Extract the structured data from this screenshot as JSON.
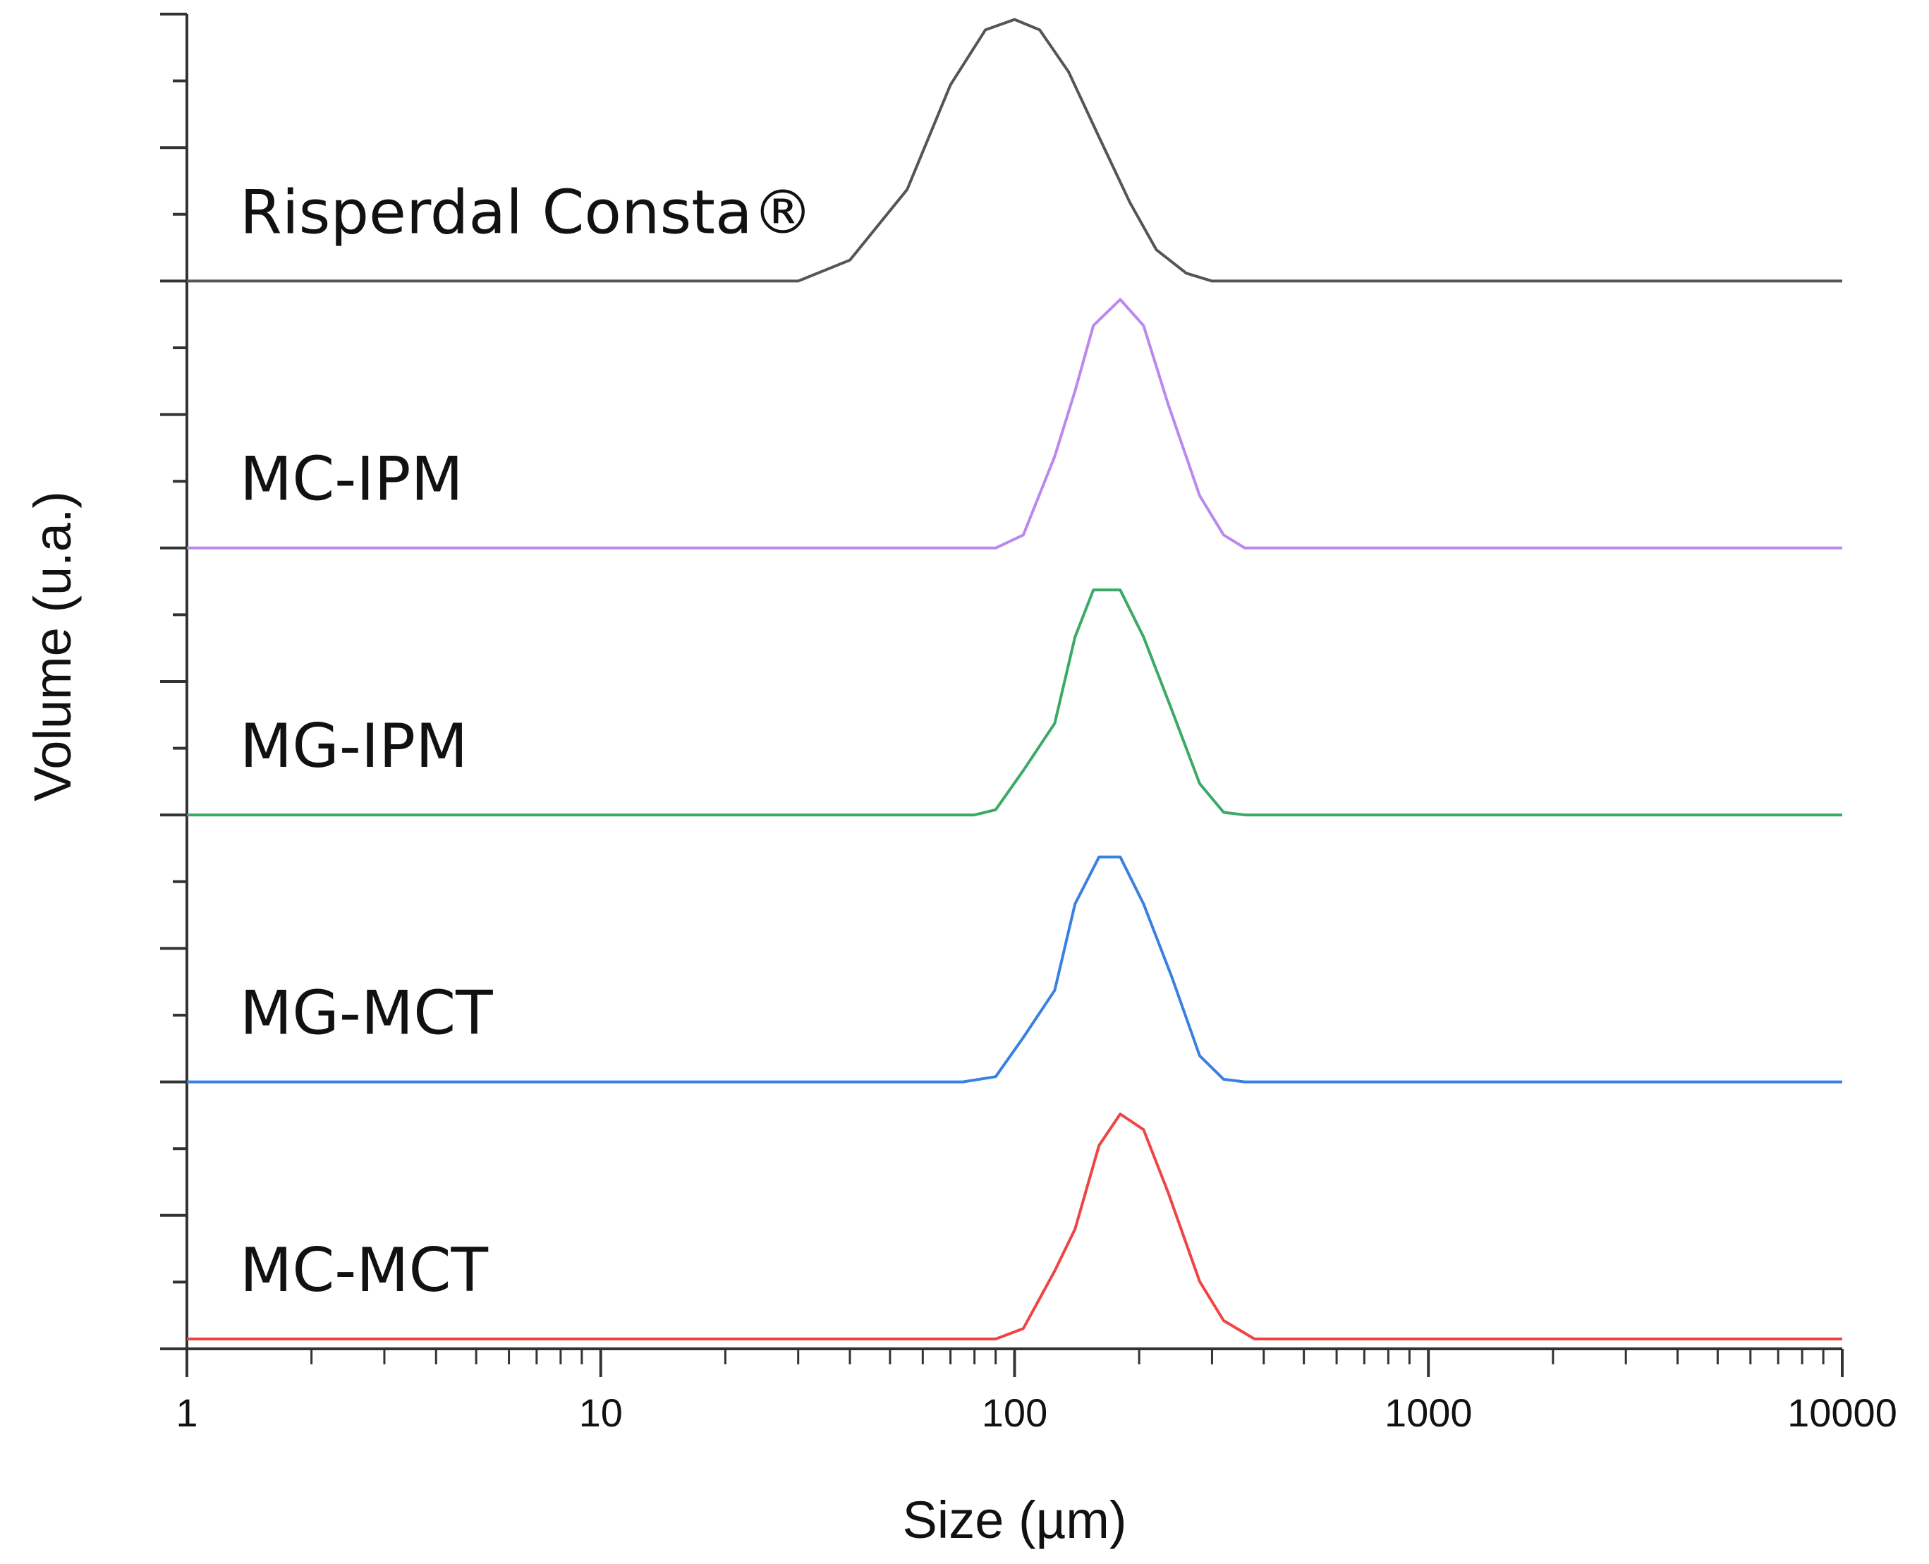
{
  "chart_data": {
    "type": "line",
    "title": "",
    "xlabel": "Size (µm)",
    "ylabel": "Volume (u.a.)",
    "xscale": "log",
    "xlim": [
      1,
      10000
    ],
    "x_ticks": [
      "1",
      "10",
      "100",
      "1000",
      "10000"
    ],
    "layout": "stacked",
    "series": [
      {
        "name": "Risperdal Consta®",
        "color": "#555555",
        "x": [
          1,
          30,
          40,
          55,
          70,
          85,
          100,
          115,
          135,
          160,
          190,
          220,
          260,
          300,
          10000
        ],
        "values": [
          0,
          0,
          0.08,
          0.35,
          0.75,
          0.96,
          1.0,
          0.96,
          0.8,
          0.55,
          0.3,
          0.12,
          0.03,
          0,
          0
        ]
      },
      {
        "name": "MC-IPM",
        "color": "#bb88ee",
        "x": [
          1,
          90,
          105,
          125,
          140,
          155,
          180,
          205,
          235,
          280,
          320,
          360,
          10000
        ],
        "values": [
          0,
          0,
          0.05,
          0.35,
          0.6,
          0.85,
          0.95,
          0.85,
          0.55,
          0.2,
          0.05,
          0,
          0
        ]
      },
      {
        "name": "MG-IPM",
        "color": "#3aaa66",
        "x": [
          1,
          80,
          90,
          105,
          125,
          140,
          155,
          180,
          205,
          240,
          280,
          320,
          360,
          10000
        ],
        "values": [
          0,
          0,
          0.02,
          0.17,
          0.35,
          0.68,
          0.86,
          0.86,
          0.68,
          0.4,
          0.12,
          0.01,
          0,
          0
        ]
      },
      {
        "name": "MG-MCT",
        "color": "#3a80e0",
        "x": [
          1,
          75,
          90,
          105,
          125,
          140,
          160,
          180,
          205,
          240,
          280,
          320,
          360,
          10000
        ],
        "values": [
          0,
          0,
          0.02,
          0.17,
          0.35,
          0.68,
          0.86,
          0.86,
          0.68,
          0.4,
          0.1,
          0.01,
          0,
          0
        ]
      },
      {
        "name": "MC-MCT",
        "color": "#ee4444",
        "x": [
          1,
          90,
          105,
          125,
          140,
          160,
          180,
          205,
          235,
          280,
          320,
          380,
          10000
        ],
        "values": [
          0,
          0,
          0.04,
          0.26,
          0.42,
          0.74,
          0.86,
          0.8,
          0.56,
          0.22,
          0.07,
          0,
          0
        ]
      }
    ]
  }
}
